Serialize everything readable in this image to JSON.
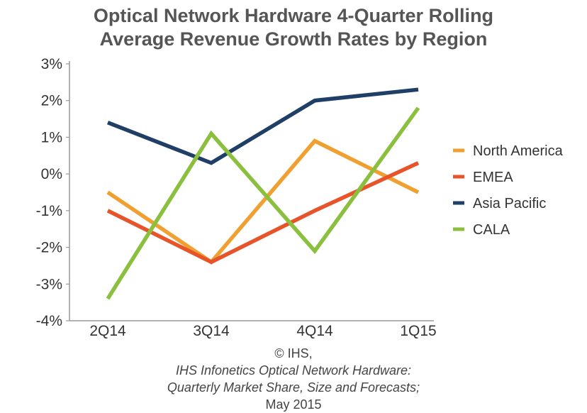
{
  "chart_data": {
    "type": "line",
    "title_lines": [
      "Optical Network Hardware 4-Quarter Rolling",
      "Average Revenue Growth Rates by Region"
    ],
    "categories": [
      "2Q14",
      "3Q14",
      "4Q14",
      "1Q15"
    ],
    "ylim": [
      -4,
      3
    ],
    "yticks": [
      "3%",
      "2%",
      "1%",
      "0%",
      "-1%",
      "-2%",
      "-3%",
      "-4%"
    ],
    "ytick_values": [
      3,
      2,
      1,
      0,
      -1,
      -2,
      -3,
      -4
    ],
    "grid": false,
    "legend_position": "right",
    "series": [
      {
        "name": "North America",
        "color": "#F0A030",
        "values": [
          -0.5,
          -2.4,
          0.9,
          -0.5
        ]
      },
      {
        "name": "EMEA",
        "color": "#E8542A",
        "values": [
          -1.0,
          -2.4,
          -1.0,
          0.3
        ]
      },
      {
        "name": "Asia Pacific",
        "color": "#1F3F66",
        "values": [
          1.4,
          0.3,
          2.0,
          2.3
        ]
      },
      {
        "name": "CALA",
        "color": "#8BBF3E",
        "values": [
          -3.4,
          1.1,
          -2.1,
          1.8
        ]
      }
    ]
  },
  "source": {
    "prefix": "© IHS, ",
    "italic_1": "IHS Infonetics Optical Network Hardware:",
    "italic_2": "Quarterly Market Share, Size and Forecasts;",
    "suffix": " May 2015"
  }
}
